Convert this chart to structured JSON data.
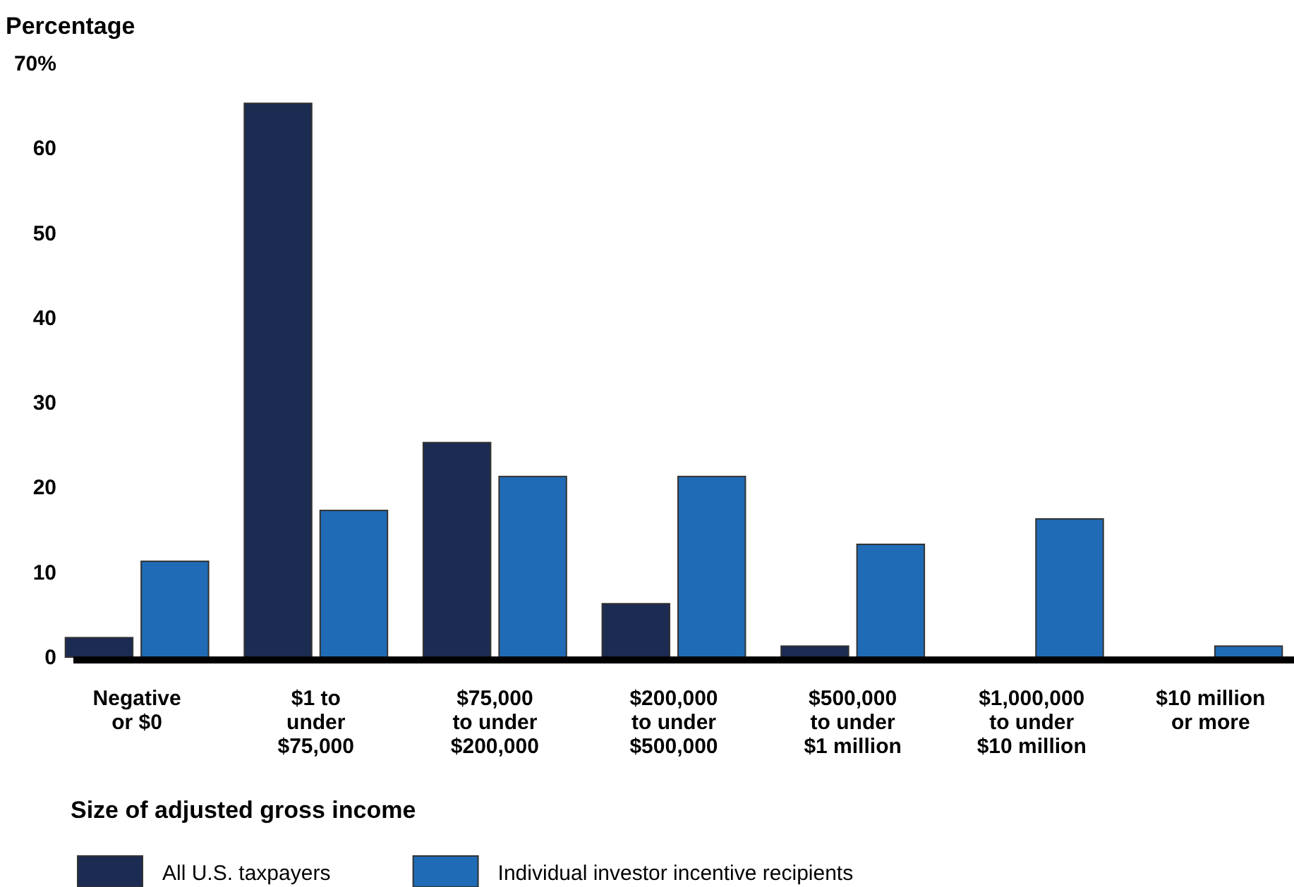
{
  "chart_data": {
    "type": "bar",
    "ylabel": "Percentage",
    "xlabel": "Size of adjusted gross income",
    "categories": [
      "Negative\nor $0",
      "$1 to\nunder\n$75,000",
      "$75,000\nto under\n$200,000",
      "$200,000\nto under\n$500,000",
      "$500,000\nto under\n$1 million",
      "$1,000,000\nto under\n$10 million",
      "$10 million\nor more"
    ],
    "series": [
      {
        "name": "All U.S. taxpayers",
        "color": "#1b2b52",
        "values": [
          2.3,
          65.3,
          25.3,
          6.3,
          1.3,
          0,
          0
        ]
      },
      {
        "name": "Individual investor incentive recipients",
        "color": "#206bb5",
        "values": [
          11.3,
          17.3,
          21.3,
          21.3,
          13.3,
          16.3,
          1.3
        ]
      }
    ],
    "ylim": [
      0,
      70
    ],
    "yticks": [
      0,
      10,
      20,
      30,
      40,
      50,
      60,
      {
        "value": 70,
        "label": "70%"
      }
    ],
    "grid": false,
    "legend": "bottom left"
  }
}
